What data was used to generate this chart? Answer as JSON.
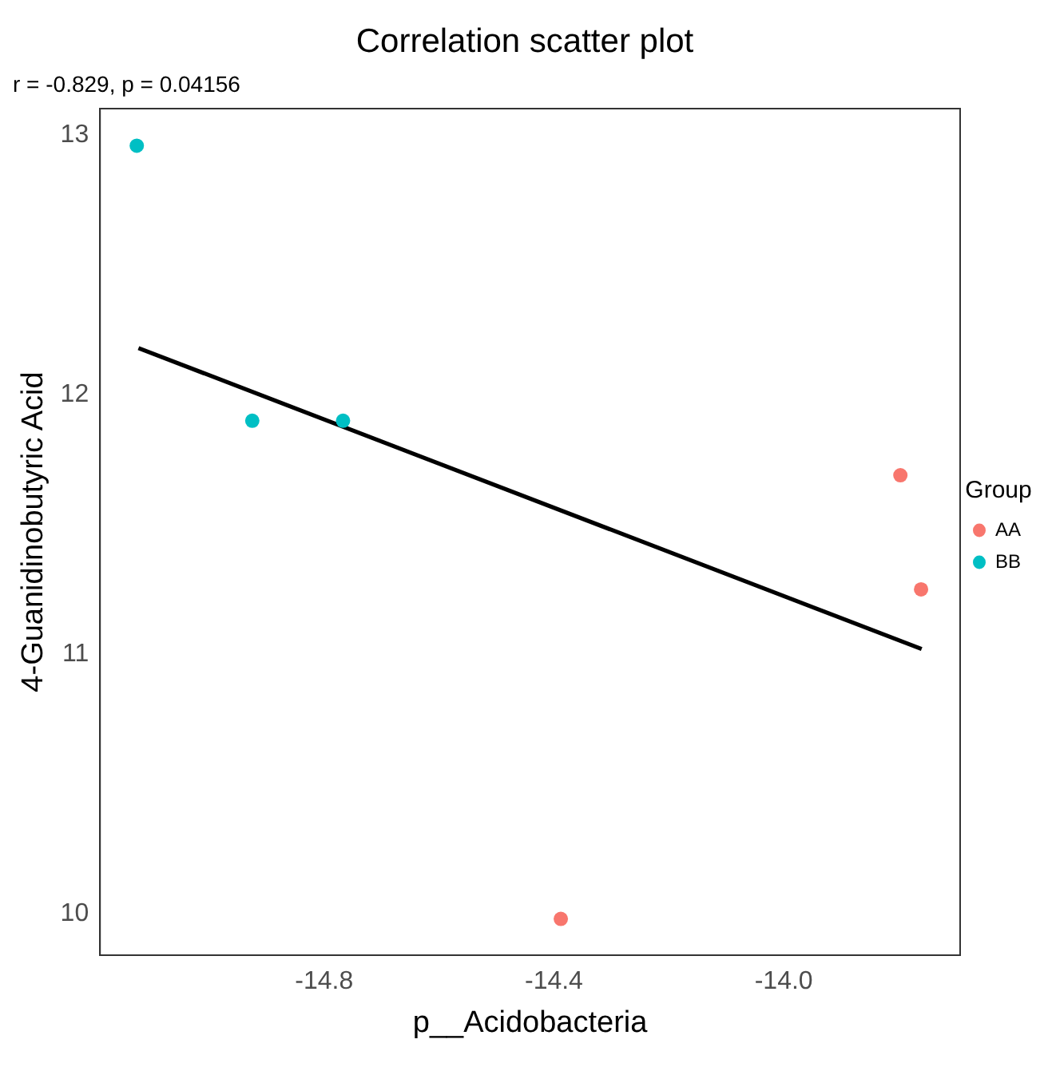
{
  "chart_data": {
    "type": "scatter",
    "title": "Correlation scatter plot",
    "subtitle": "r = -0.829, p = 0.04156",
    "xlabel": "p__Acidobacteria",
    "ylabel": "4-Guanidinobutyric Acid",
    "legend_title": "Group",
    "legend": "right",
    "grid": false,
    "marker": "circle",
    "xlim": [
      -15.19,
      -13.693
    ],
    "xticks": [
      -14.8,
      -14.4,
      {
        "value": -14,
        "label": "-14.0"
      }
    ],
    "ylim": [
      9.84,
      13.103
    ],
    "yticks": [
      10,
      11,
      12,
      13
    ],
    "series": [
      {
        "name": "AA",
        "color": "#f8766d",
        "x": [
          -13.797,
          -13.761,
          -14.388
        ],
        "values": [
          11.69,
          11.25,
          9.98
        ]
      },
      {
        "name": "BB",
        "color": "#00bfc4",
        "x": [
          -15.126,
          -14.925,
          -14.767
        ],
        "values": [
          12.96,
          11.9,
          11.9
        ]
      },
      {
        "type": "line",
        "color": "#000000",
        "x": [
          -15.123,
          -13.76
        ],
        "values": [
          12.18,
          11.02
        ],
        "marker": "none",
        "line_style": "solid"
      }
    ]
  }
}
